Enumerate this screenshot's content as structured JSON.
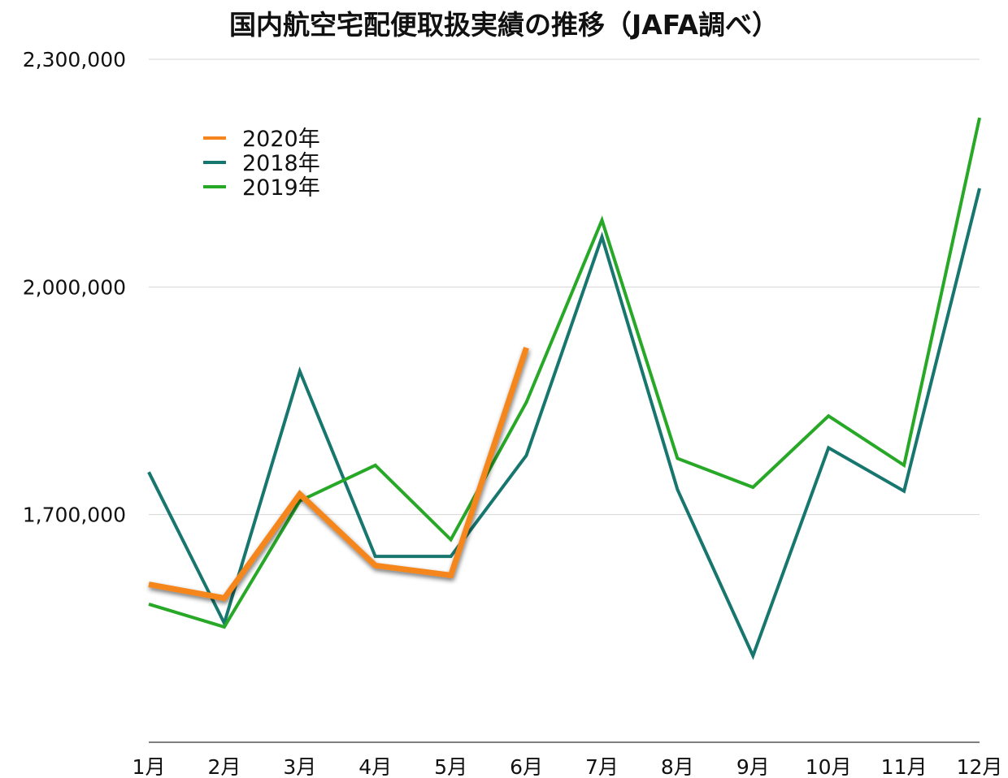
{
  "chart_data": {
    "type": "line",
    "title": "国内航空宅配便取扱実績の推移（JAFA調べ）",
    "xlabel": "",
    "ylabel": "",
    "categories": [
      "1月",
      "2月",
      "3月",
      "4月",
      "5月",
      "6月",
      "7月",
      "8月",
      "9月",
      "10月",
      "11月",
      "12月"
    ],
    "ylim": [
      1400000,
      2300000
    ],
    "yticks": [
      1700000,
      2000000,
      2300000
    ],
    "ytick_labels": [
      "1,700,000",
      "2,000,000",
      "2,300,000"
    ],
    "grid": true,
    "legend_position": "top-left",
    "series": [
      {
        "name": "2020年",
        "color": "#f5861f",
        "values": [
          1608000,
          1590000,
          1727000,
          1633000,
          1620000,
          1920000,
          null,
          null,
          null,
          null,
          null,
          null
        ]
      },
      {
        "name": "2018年",
        "color": "#17766e",
        "values": [
          1756000,
          1557000,
          1889000,
          1645000,
          1645000,
          1778000,
          2066000,
          1733000,
          1514000,
          1788000,
          1731000,
          2130000
        ]
      },
      {
        "name": "2019年",
        "color": "#27a827",
        "values": [
          1582000,
          1552000,
          1718000,
          1765000,
          1667000,
          1848000,
          2088000,
          1774000,
          1736000,
          1830000,
          1765000,
          2223000
        ]
      }
    ]
  }
}
